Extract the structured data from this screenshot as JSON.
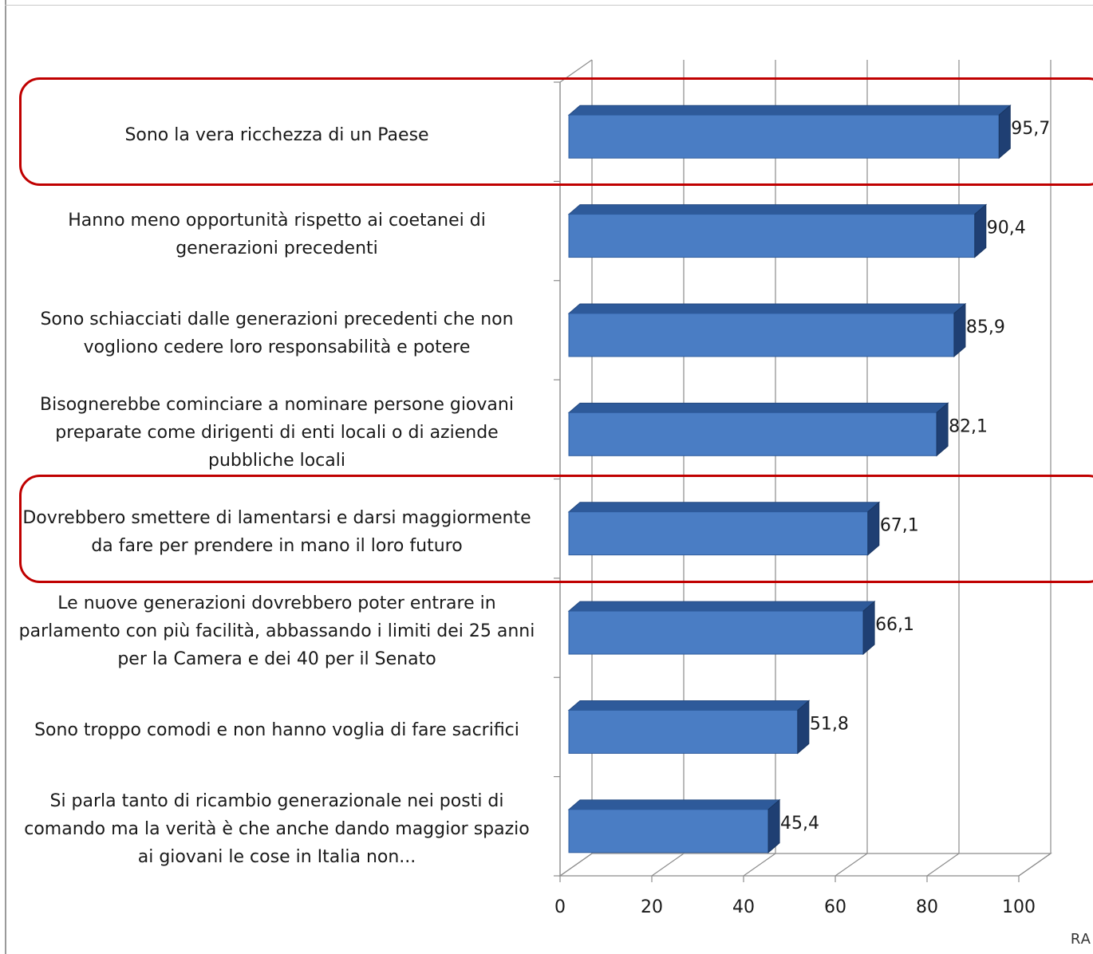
{
  "chart_data": {
    "type": "bar",
    "orientation": "horizontal",
    "style": "3d",
    "categories": [
      "Sono la vera ricchezza di un Paese",
      "Hanno meno opportunità rispetto ai coetanei di generazioni precedenti",
      "Sono schiacciati dalle generazioni precedenti che non vogliono cedere loro responsabilità e potere",
      "Bisognerebbe cominciare a nominare persone giovani preparate come dirigenti di enti locali o di aziende pubbliche locali",
      "Dovrebbero smettere di lamentarsi e darsi maggiormente da fare per prendere in mano il loro futuro",
      "Le nuove generazioni dovrebbero poter entrare in parlamento con più facilità, abbassando i limiti dei 25 anni per la Camera e dei 40 per il Senato",
      "Sono troppo comodi e non hanno voglia di fare sacrifici",
      "Si parla tanto di ricambio generazionale nei posti di comando ma la verità è che anche dando maggior spazio ai giovani le cose in Italia non..."
    ],
    "values": [
      95.7,
      90.4,
      85.9,
      82.1,
      67.1,
      66.1,
      51.8,
      45.4
    ],
    "value_labels": [
      "95,7",
      "90,4",
      "85,9",
      "82,1",
      "67,1",
      "66,1",
      "51,8",
      "45,4"
    ],
    "xlim": [
      0,
      100
    ],
    "x_ticks": [
      0,
      20,
      40,
      60,
      80,
      100
    ],
    "grid": true,
    "bar_color": "#4a7dc4",
    "highlighted_categories": [
      0,
      4
    ],
    "highlight_color": "#c00000"
  },
  "branding": {
    "text": "RA"
  }
}
